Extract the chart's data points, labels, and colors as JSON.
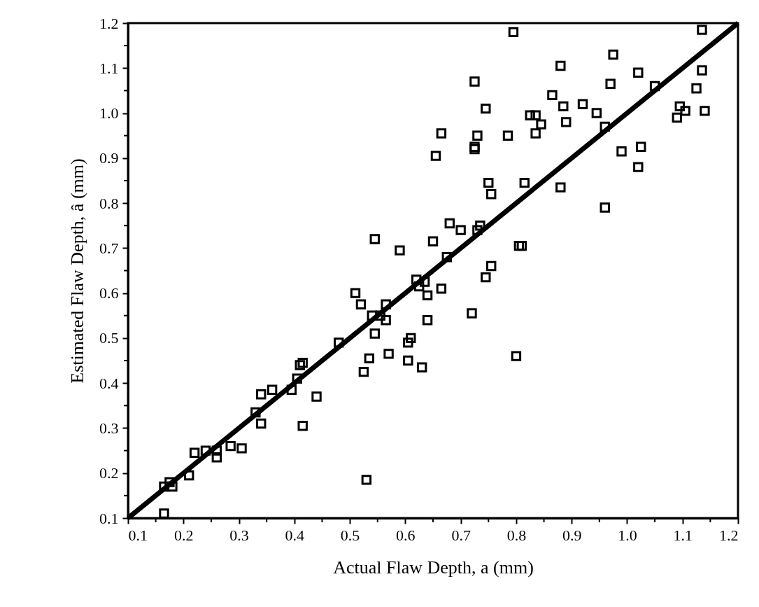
{
  "chart_data": {
    "type": "scatter",
    "xlabel": "Actual Flaw Depth, a (mm)",
    "ylabel": "Estimated Flaw Depth, â (mm)",
    "xlim": [
      0.1,
      1.2
    ],
    "ylim": [
      0.1,
      1.2
    ],
    "xticks": [
      0.1,
      {
        "value": 0.15,
        "label": null
      },
      0.2,
      {
        "value": 0.25,
        "label": null
      },
      0.3,
      {
        "value": 0.35,
        "label": null
      },
      0.4,
      {
        "value": 0.45,
        "label": null
      },
      0.5,
      {
        "value": 0.55,
        "label": null
      },
      0.6,
      {
        "value": 0.65,
        "label": null
      },
      0.7,
      {
        "value": 0.75,
        "label": null
      },
      0.8,
      {
        "value": 0.85,
        "label": null
      },
      0.9,
      {
        "value": 0.95,
        "label": null
      },
      {
        "value": 1,
        "label": "1.0"
      },
      {
        "value": 1.05,
        "label": null
      },
      1.1,
      {
        "value": 1.15,
        "label": null
      },
      1.2
    ],
    "yticks": [
      0.1,
      {
        "value": 0.15,
        "label": null
      },
      0.2,
      {
        "value": 0.25,
        "label": null
      },
      0.3,
      {
        "value": 0.35,
        "label": null
      },
      0.4,
      {
        "value": 0.45,
        "label": null
      },
      0.5,
      {
        "value": 0.55,
        "label": null
      },
      0.6,
      {
        "value": 0.65,
        "label": null
      },
      0.7,
      {
        "value": 0.75,
        "label": null
      },
      0.8,
      {
        "value": 0.85,
        "label": null
      },
      0.9,
      {
        "value": 0.95,
        "label": null
      },
      {
        "value": 1,
        "label": "1.0"
      },
      {
        "value": 1.05,
        "label": null
      },
      1.1,
      {
        "value": 1.15,
        "label": null
      },
      1.2
    ],
    "grid": false,
    "series": [
      {
        "color": "#000000",
        "marker": "square",
        "x": [
          0.165,
          0.165,
          0.175,
          0.18,
          0.21,
          0.22,
          0.24,
          0.26,
          0.26,
          0.285,
          0.305,
          0.33,
          0.34,
          0.34,
          0.36,
          0.395,
          0.405,
          0.41,
          0.415,
          0.415,
          0.44,
          0.48,
          0.51,
          0.52,
          0.525,
          0.53,
          0.535,
          0.54,
          0.545,
          0.545,
          0.555,
          0.565,
          0.565,
          0.57,
          0.59,
          0.605,
          0.61,
          0.605,
          0.62,
          0.625,
          0.63,
          0.635,
          0.64,
          0.64,
          0.65,
          0.655,
          0.665,
          0.665,
          0.675,
          0.68,
          0.7,
          0.72,
          0.725,
          0.725,
          0.73,
          0.725,
          0.73,
          0.735,
          0.745,
          0.745,
          0.75,
          0.755,
          0.755,
          0.785,
          0.795,
          0.8,
          0.805,
          0.81,
          0.815,
          0.825,
          0.835,
          0.835,
          0.845,
          0.865,
          0.88,
          0.88,
          0.885,
          0.89,
          0.92,
          0.945,
          0.96,
          0.96,
          0.97,
          0.975,
          0.99,
          1.02,
          1.02,
          1.025,
          1.05,
          1.09,
          1.095,
          1.105,
          1.125,
          1.135,
          1.135,
          1.14
        ],
        "values": [
          0.11,
          0.17,
          0.18,
          0.17,
          0.195,
          0.245,
          0.25,
          0.25,
          0.235,
          0.26,
          0.255,
          0.335,
          0.375,
          0.31,
          0.385,
          0.385,
          0.41,
          0.44,
          0.445,
          0.305,
          0.37,
          0.49,
          0.6,
          0.575,
          0.425,
          0.185,
          0.455,
          0.55,
          0.72,
          0.51,
          0.55,
          0.575,
          0.54,
          0.465,
          0.695,
          0.49,
          0.5,
          0.45,
          0.63,
          0.615,
          0.435,
          0.625,
          0.595,
          0.54,
          0.715,
          0.905,
          0.955,
          0.61,
          0.68,
          0.755,
          0.74,
          0.555,
          0.925,
          0.92,
          0.95,
          1.07,
          0.74,
          0.75,
          0.635,
          1.01,
          0.845,
          0.82,
          0.66,
          0.95,
          1.18,
          0.46,
          0.705,
          0.705,
          0.845,
          0.995,
          0.995,
          0.955,
          0.975,
          1.04,
          1.105,
          0.835,
          1.015,
          0.98,
          1.02,
          1.0,
          0.97,
          0.79,
          1.065,
          1.13,
          0.915,
          1.09,
          0.88,
          0.925,
          1.06,
          0.99,
          1.015,
          1.005,
          1.055,
          1.095,
          1.185,
          1.005
        ]
      },
      {
        "type": "line",
        "color": "#000000",
        "marker": "none",
        "line_style": "solid",
        "x": [
          0.1,
          1.2
        ],
        "values": [
          0.1,
          1.2
        ]
      }
    ]
  }
}
